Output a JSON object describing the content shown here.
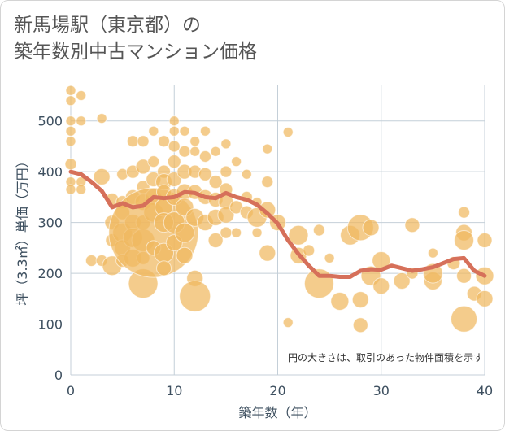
{
  "header": {
    "title_line1": "新馬場駅（東京都）の",
    "title_line2": "築年数別中古マンション価格"
  },
  "colors": {
    "bubble": "#f0b860",
    "line": "#d6705a",
    "grid": "#c4cfd8",
    "text": "#3d4f5f"
  },
  "chart_data": {
    "type": "scatter",
    "title": "新馬場駅（東京都）の築年数別中古マンション価格",
    "xlabel": "築年数（年）",
    "ylabel": "坪（3.3㎡）単価（万円）",
    "xlim": [
      0,
      40
    ],
    "ylim": [
      0,
      570
    ],
    "x_ticks": [
      0,
      10,
      20,
      30,
      40
    ],
    "y_ticks": [
      0,
      100,
      200,
      300,
      400,
      500
    ],
    "x_tick_labels": [
      "0",
      "10",
      "20",
      "30",
      "40"
    ],
    "y_tick_labels": [
      "0",
      "100",
      "200",
      "300",
      "400",
      "500"
    ],
    "grid": true,
    "annotation": "円の大きさは、取引のあった物件面積を示す",
    "series": [
      {
        "type": "line",
        "points": [
          [
            0,
            400
          ],
          [
            1,
            395
          ],
          [
            2,
            380
          ],
          [
            3,
            362
          ],
          [
            4,
            330
          ],
          [
            5,
            338
          ],
          [
            6,
            330
          ],
          [
            7,
            333
          ],
          [
            8,
            350
          ],
          [
            9,
            348
          ],
          [
            10,
            350
          ],
          [
            11,
            360
          ],
          [
            12,
            358
          ],
          [
            13,
            350
          ],
          [
            14,
            348
          ],
          [
            15,
            358
          ],
          [
            16,
            350
          ],
          [
            17,
            345
          ],
          [
            18,
            335
          ],
          [
            19,
            318
          ],
          [
            20,
            298
          ],
          [
            21,
            265
          ],
          [
            22,
            238
          ],
          [
            23,
            215
          ],
          [
            24,
            195
          ],
          [
            25,
            195
          ],
          [
            26,
            193
          ],
          [
            27,
            193
          ],
          [
            28,
            205
          ],
          [
            29,
            208
          ],
          [
            30,
            207
          ],
          [
            31,
            215
          ],
          [
            32,
            210
          ],
          [
            33,
            205
          ],
          [
            34,
            208
          ],
          [
            35,
            212
          ],
          [
            36,
            220
          ],
          [
            37,
            228
          ],
          [
            38,
            230
          ],
          [
            39,
            205
          ],
          [
            40,
            195
          ]
        ]
      },
      {
        "type": "bubble",
        "points": [
          [
            0,
            560,
            6
          ],
          [
            0,
            540,
            6
          ],
          [
            0,
            500,
            6
          ],
          [
            0,
            480,
            6
          ],
          [
            0,
            460,
            6
          ],
          [
            0,
            415,
            7
          ],
          [
            0,
            380,
            6
          ],
          [
            0,
            365,
            6
          ],
          [
            1,
            550,
            6
          ],
          [
            1,
            500,
            6
          ],
          [
            1,
            380,
            6
          ],
          [
            1,
            365,
            6
          ],
          [
            2,
            225,
            7
          ],
          [
            3,
            505,
            6
          ],
          [
            3,
            390,
            10
          ],
          [
            3,
            225,
            7
          ],
          [
            4,
            345,
            8
          ],
          [
            4,
            300,
            9
          ],
          [
            4,
            265,
            8
          ],
          [
            4,
            215,
            12
          ],
          [
            5,
            395,
            7
          ],
          [
            5,
            340,
            8
          ],
          [
            5,
            320,
            9
          ],
          [
            5,
            280,
            12
          ],
          [
            5,
            250,
            10
          ],
          [
            5,
            225,
            8
          ],
          [
            6,
            460,
            7
          ],
          [
            6,
            400,
            8
          ],
          [
            6,
            350,
            9
          ],
          [
            6,
            300,
            10
          ],
          [
            6,
            270,
            12
          ],
          [
            6,
            230,
            11
          ],
          [
            7,
            460,
            7
          ],
          [
            7,
            410,
            9
          ],
          [
            7,
            370,
            8
          ],
          [
            7,
            340,
            10
          ],
          [
            7,
            300,
            9
          ],
          [
            7,
            265,
            14
          ],
          [
            7,
            230,
            8
          ],
          [
            7,
            180,
            18
          ],
          [
            8,
            480,
            6
          ],
          [
            8,
            420,
            7
          ],
          [
            8,
            385,
            9
          ],
          [
            8,
            350,
            10
          ],
          [
            8,
            320,
            12
          ],
          [
            8,
            280,
            55
          ],
          [
            8,
            250,
            9
          ],
          [
            9,
            460,
            7
          ],
          [
            9,
            400,
            8
          ],
          [
            9,
            380,
            10
          ],
          [
            9,
            360,
            9
          ],
          [
            9,
            330,
            11
          ],
          [
            9,
            300,
            12
          ],
          [
            9,
            240,
            12
          ],
          [
            9,
            210,
            9
          ],
          [
            10,
            500,
            6
          ],
          [
            10,
            480,
            6
          ],
          [
            10,
            450,
            7
          ],
          [
            10,
            420,
            8
          ],
          [
            10,
            385,
            9
          ],
          [
            10,
            350,
            10
          ],
          [
            10,
            300,
            13
          ],
          [
            10,
            260,
            10
          ],
          [
            11,
            480,
            6
          ],
          [
            11,
            440,
            7
          ],
          [
            11,
            400,
            9
          ],
          [
            11,
            360,
            10
          ],
          [
            11,
            330,
            11
          ],
          [
            11,
            280,
            12
          ],
          [
            11,
            235,
            10
          ],
          [
            12,
            460,
            6
          ],
          [
            12,
            440,
            6
          ],
          [
            12,
            400,
            8
          ],
          [
            12,
            360,
            9
          ],
          [
            12,
            310,
            11
          ],
          [
            12,
            190,
            10
          ],
          [
            12,
            155,
            19
          ],
          [
            13,
            480,
            6
          ],
          [
            13,
            430,
            7
          ],
          [
            13,
            395,
            8
          ],
          [
            13,
            350,
            9
          ],
          [
            13,
            300,
            10
          ],
          [
            14,
            440,
            6
          ],
          [
            14,
            380,
            8
          ],
          [
            14,
            345,
            9
          ],
          [
            14,
            310,
            10
          ],
          [
            14,
            265,
            9
          ],
          [
            15,
            455,
            6
          ],
          [
            15,
            400,
            7
          ],
          [
            15,
            365,
            8
          ],
          [
            15,
            340,
            9
          ],
          [
            15,
            315,
            10
          ],
          [
            15,
            280,
            7
          ],
          [
            16,
            420,
            6
          ],
          [
            16,
            330,
            8
          ],
          [
            16,
            280,
            6
          ],
          [
            17,
            395,
            6
          ],
          [
            17,
            350,
            7
          ],
          [
            17,
            320,
            8
          ],
          [
            18,
            340,
            6
          ],
          [
            18,
            310,
            12
          ],
          [
            18,
            280,
            6
          ],
          [
            19,
            445,
            6
          ],
          [
            19,
            380,
            7
          ],
          [
            19,
            325,
            10
          ],
          [
            19,
            240,
            10
          ],
          [
            20,
            300,
            10
          ],
          [
            21,
            478,
            6
          ],
          [
            21,
            103,
            6
          ],
          [
            22,
            275,
            12
          ],
          [
            22,
            235,
            10
          ],
          [
            23,
            245,
            7
          ],
          [
            24,
            285,
            7
          ],
          [
            24,
            180,
            18
          ],
          [
            25,
            230,
            6
          ],
          [
            26,
            145,
            11
          ],
          [
            27,
            275,
            12
          ],
          [
            28,
            290,
            16
          ],
          [
            28,
            148,
            10
          ],
          [
            28,
            98,
            9
          ],
          [
            29,
            195,
            12
          ],
          [
            29,
            290,
            10
          ],
          [
            30,
            175,
            10
          ],
          [
            30,
            225,
            11
          ],
          [
            32,
            185,
            10
          ],
          [
            33,
            295,
            9
          ],
          [
            33,
            200,
            7
          ],
          [
            35,
            240,
            6
          ],
          [
            35,
            185,
            11
          ],
          [
            35,
            200,
            12
          ],
          [
            37,
            220,
            8
          ],
          [
            38,
            320,
            7
          ],
          [
            38,
            280,
            10
          ],
          [
            38,
            265,
            12
          ],
          [
            38,
            195,
            9
          ],
          [
            38,
            110,
            16
          ],
          [
            39,
            160,
            9
          ],
          [
            40,
            265,
            9
          ],
          [
            40,
            195,
            11
          ],
          [
            40,
            150,
            10
          ]
        ]
      }
    ]
  }
}
